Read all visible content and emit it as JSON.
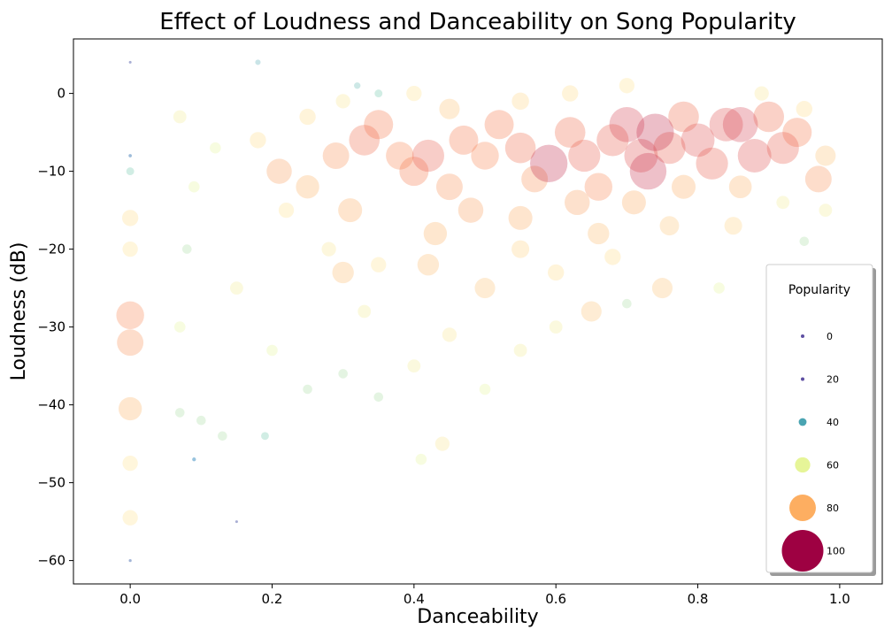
{
  "chart_data": {
    "type": "scatter",
    "title": "Effect of Loudness and Danceability on Song Popularity",
    "xlabel": "Danceability",
    "ylabel": "Loudness (dB)",
    "xlim": [
      -0.08,
      1.06
    ],
    "ylim": [
      -63,
      7
    ],
    "x_ticks": [
      0.0,
      0.2,
      0.4,
      0.6,
      0.8,
      1.0
    ],
    "x_tick_labels": [
      "0.0",
      "0.2",
      "0.4",
      "0.6",
      "0.8",
      "1.0"
    ],
    "y_ticks": [
      0,
      -10,
      -20,
      -30,
      -40,
      -50,
      -60
    ],
    "y_tick_labels": [
      "0",
      "−10",
      "−20",
      "−30",
      "−40",
      "−50",
      "−60"
    ],
    "grid": false,
    "size_encodes": "Popularity",
    "color_encodes": "Popularity",
    "colormap": "Spectral_r",
    "legend": {
      "title": "Popularity",
      "placement": "right",
      "entries": [
        {
          "label": "0",
          "value": 0,
          "color": "#5e4fa2"
        },
        {
          "label": "20",
          "value": 20,
          "color": "#5e4fa2"
        },
        {
          "label": "40",
          "value": 40,
          "color": "#4aa4b2"
        },
        {
          "label": "60",
          "value": 60,
          "color": "#e6f598"
        },
        {
          "label": "80",
          "value": 80,
          "color": "#fdae61"
        },
        {
          "label": "100",
          "value": 100,
          "color": "#9e0142"
        }
      ]
    },
    "points": [
      {
        "x": 0.0,
        "y": -60,
        "p": 10
      },
      {
        "x": 0.0,
        "y": -54.5,
        "p": 60
      },
      {
        "x": 0.0,
        "y": -47.5,
        "p": 60
      },
      {
        "x": 0.0,
        "y": -40.5,
        "p": 75
      },
      {
        "x": 0.0,
        "y": -32,
        "p": 80
      },
      {
        "x": 0.0,
        "y": -28.5,
        "p": 82
      },
      {
        "x": 0.0,
        "y": -20,
        "p": 60
      },
      {
        "x": 0.0,
        "y": -16,
        "p": 62
      },
      {
        "x": 0.0,
        "y": -10,
        "p": 40
      },
      {
        "x": 0.0,
        "y": -8,
        "p": 15
      },
      {
        "x": 0.0,
        "y": 4,
        "p": 5
      },
      {
        "x": 0.18,
        "y": 4,
        "p": 30
      },
      {
        "x": 0.09,
        "y": -47,
        "p": 20
      },
      {
        "x": 0.15,
        "y": -55,
        "p": 5
      },
      {
        "x": 0.41,
        "y": -47,
        "p": 50
      },
      {
        "x": 0.44,
        "y": -45,
        "p": 58
      },
      {
        "x": 0.19,
        "y": -44,
        "p": 40
      },
      {
        "x": 0.07,
        "y": -41,
        "p": 45
      },
      {
        "x": 0.1,
        "y": -42,
        "p": 45
      },
      {
        "x": 0.13,
        "y": -44,
        "p": 45
      },
      {
        "x": 0.07,
        "y": -30,
        "p": 50
      },
      {
        "x": 0.08,
        "y": -20,
        "p": 45
      },
      {
        "x": 0.09,
        "y": -12,
        "p": 50
      },
      {
        "x": 0.07,
        "y": -3,
        "p": 55
      },
      {
        "x": 0.12,
        "y": -7,
        "p": 50
      },
      {
        "x": 0.15,
        "y": -25,
        "p": 55
      },
      {
        "x": 0.2,
        "y": -33,
        "p": 50
      },
      {
        "x": 0.25,
        "y": -38,
        "p": 45
      },
      {
        "x": 0.3,
        "y": -36,
        "p": 45
      },
      {
        "x": 0.35,
        "y": -39,
        "p": 45
      },
      {
        "x": 0.22,
        "y": -15,
        "p": 60
      },
      {
        "x": 0.28,
        "y": -20,
        "p": 58
      },
      {
        "x": 0.33,
        "y": -28,
        "p": 55
      },
      {
        "x": 0.18,
        "y": -6,
        "p": 62
      },
      {
        "x": 0.25,
        "y": -3,
        "p": 62
      },
      {
        "x": 0.4,
        "y": -35,
        "p": 55
      },
      {
        "x": 0.45,
        "y": -31,
        "p": 58
      },
      {
        "x": 0.5,
        "y": -38,
        "p": 50
      },
      {
        "x": 0.55,
        "y": -33,
        "p": 55
      },
      {
        "x": 0.6,
        "y": -30,
        "p": 55
      },
      {
        "x": 0.65,
        "y": -28,
        "p": 70
      },
      {
        "x": 0.7,
        "y": -27,
        "p": 45
      },
      {
        "x": 0.75,
        "y": -25,
        "p": 70
      },
      {
        "x": 0.83,
        "y": -25,
        "p": 50
      },
      {
        "x": 0.95,
        "y": -19,
        "p": 45
      },
      {
        "x": 0.92,
        "y": -14,
        "p": 55
      },
      {
        "x": 0.98,
        "y": -15,
        "p": 55
      },
      {
        "x": 0.35,
        "y": -22,
        "p": 60
      },
      {
        "x": 0.42,
        "y": -22,
        "p": 72
      },
      {
        "x": 0.5,
        "y": -25,
        "p": 70
      },
      {
        "x": 0.55,
        "y": -20,
        "p": 65
      },
      {
        "x": 0.6,
        "y": -23,
        "p": 62
      },
      {
        "x": 0.68,
        "y": -21,
        "p": 62
      },
      {
        "x": 0.43,
        "y": -18,
        "p": 75
      },
      {
        "x": 0.3,
        "y": -23,
        "p": 72
      },
      {
        "x": 0.31,
        "y": -15,
        "p": 76
      },
      {
        "x": 0.25,
        "y": -12,
        "p": 75
      },
      {
        "x": 0.21,
        "y": -10,
        "p": 78
      },
      {
        "x": 0.29,
        "y": -8,
        "p": 80
      },
      {
        "x": 0.33,
        "y": -6,
        "p": 86
      },
      {
        "x": 0.35,
        "y": -4,
        "p": 84
      },
      {
        "x": 0.38,
        "y": -8,
        "p": 82
      },
      {
        "x": 0.4,
        "y": -10,
        "p": 84
      },
      {
        "x": 0.42,
        "y": -8,
        "p": 88
      },
      {
        "x": 0.45,
        "y": -12,
        "p": 80
      },
      {
        "x": 0.47,
        "y": -6,
        "p": 84
      },
      {
        "x": 0.5,
        "y": -8,
        "p": 82
      },
      {
        "x": 0.52,
        "y": -4,
        "p": 84
      },
      {
        "x": 0.55,
        "y": -7,
        "p": 86
      },
      {
        "x": 0.57,
        "y": -11,
        "p": 80
      },
      {
        "x": 0.59,
        "y": -9,
        "p": 95
      },
      {
        "x": 0.62,
        "y": -5,
        "p": 86
      },
      {
        "x": 0.64,
        "y": -8,
        "p": 88
      },
      {
        "x": 0.66,
        "y": -12,
        "p": 82
      },
      {
        "x": 0.68,
        "y": -6,
        "p": 88
      },
      {
        "x": 0.7,
        "y": -4,
        "p": 92
      },
      {
        "x": 0.72,
        "y": -8,
        "p": 90
      },
      {
        "x": 0.73,
        "y": -10,
        "p": 94
      },
      {
        "x": 0.74,
        "y": -5,
        "p": 95
      },
      {
        "x": 0.76,
        "y": -7,
        "p": 88
      },
      {
        "x": 0.78,
        "y": -3,
        "p": 86
      },
      {
        "x": 0.8,
        "y": -6,
        "p": 90
      },
      {
        "x": 0.82,
        "y": -9,
        "p": 88
      },
      {
        "x": 0.84,
        "y": -4,
        "p": 90
      },
      {
        "x": 0.86,
        "y": -4,
        "p": 92
      },
      {
        "x": 0.88,
        "y": -8,
        "p": 90
      },
      {
        "x": 0.9,
        "y": -3,
        "p": 86
      },
      {
        "x": 0.92,
        "y": -7,
        "p": 88
      },
      {
        "x": 0.94,
        "y": -5,
        "p": 84
      },
      {
        "x": 0.97,
        "y": -11,
        "p": 80
      },
      {
        "x": 0.48,
        "y": -15,
        "p": 78
      },
      {
        "x": 0.55,
        "y": -16,
        "p": 76
      },
      {
        "x": 0.63,
        "y": -14,
        "p": 78
      },
      {
        "x": 0.71,
        "y": -14,
        "p": 76
      },
      {
        "x": 0.78,
        "y": -12,
        "p": 76
      },
      {
        "x": 0.86,
        "y": -12,
        "p": 74
      },
      {
        "x": 0.66,
        "y": -18,
        "p": 72
      },
      {
        "x": 0.76,
        "y": -17,
        "p": 68
      },
      {
        "x": 0.85,
        "y": -17,
        "p": 65
      },
      {
        "x": 0.62,
        "y": 0,
        "p": 62
      },
      {
        "x": 0.7,
        "y": 1,
        "p": 60
      },
      {
        "x": 0.55,
        "y": -1,
        "p": 64
      },
      {
        "x": 0.45,
        "y": -2,
        "p": 70
      },
      {
        "x": 0.4,
        "y": 0,
        "p": 60
      },
      {
        "x": 0.3,
        "y": -1,
        "p": 58
      },
      {
        "x": 0.35,
        "y": 0,
        "p": 40
      },
      {
        "x": 0.32,
        "y": 1,
        "p": 35
      },
      {
        "x": 0.95,
        "y": -2,
        "p": 62
      },
      {
        "x": 0.89,
        "y": 0,
        "p": 58
      },
      {
        "x": 0.98,
        "y": -8,
        "p": 70
      }
    ]
  }
}
